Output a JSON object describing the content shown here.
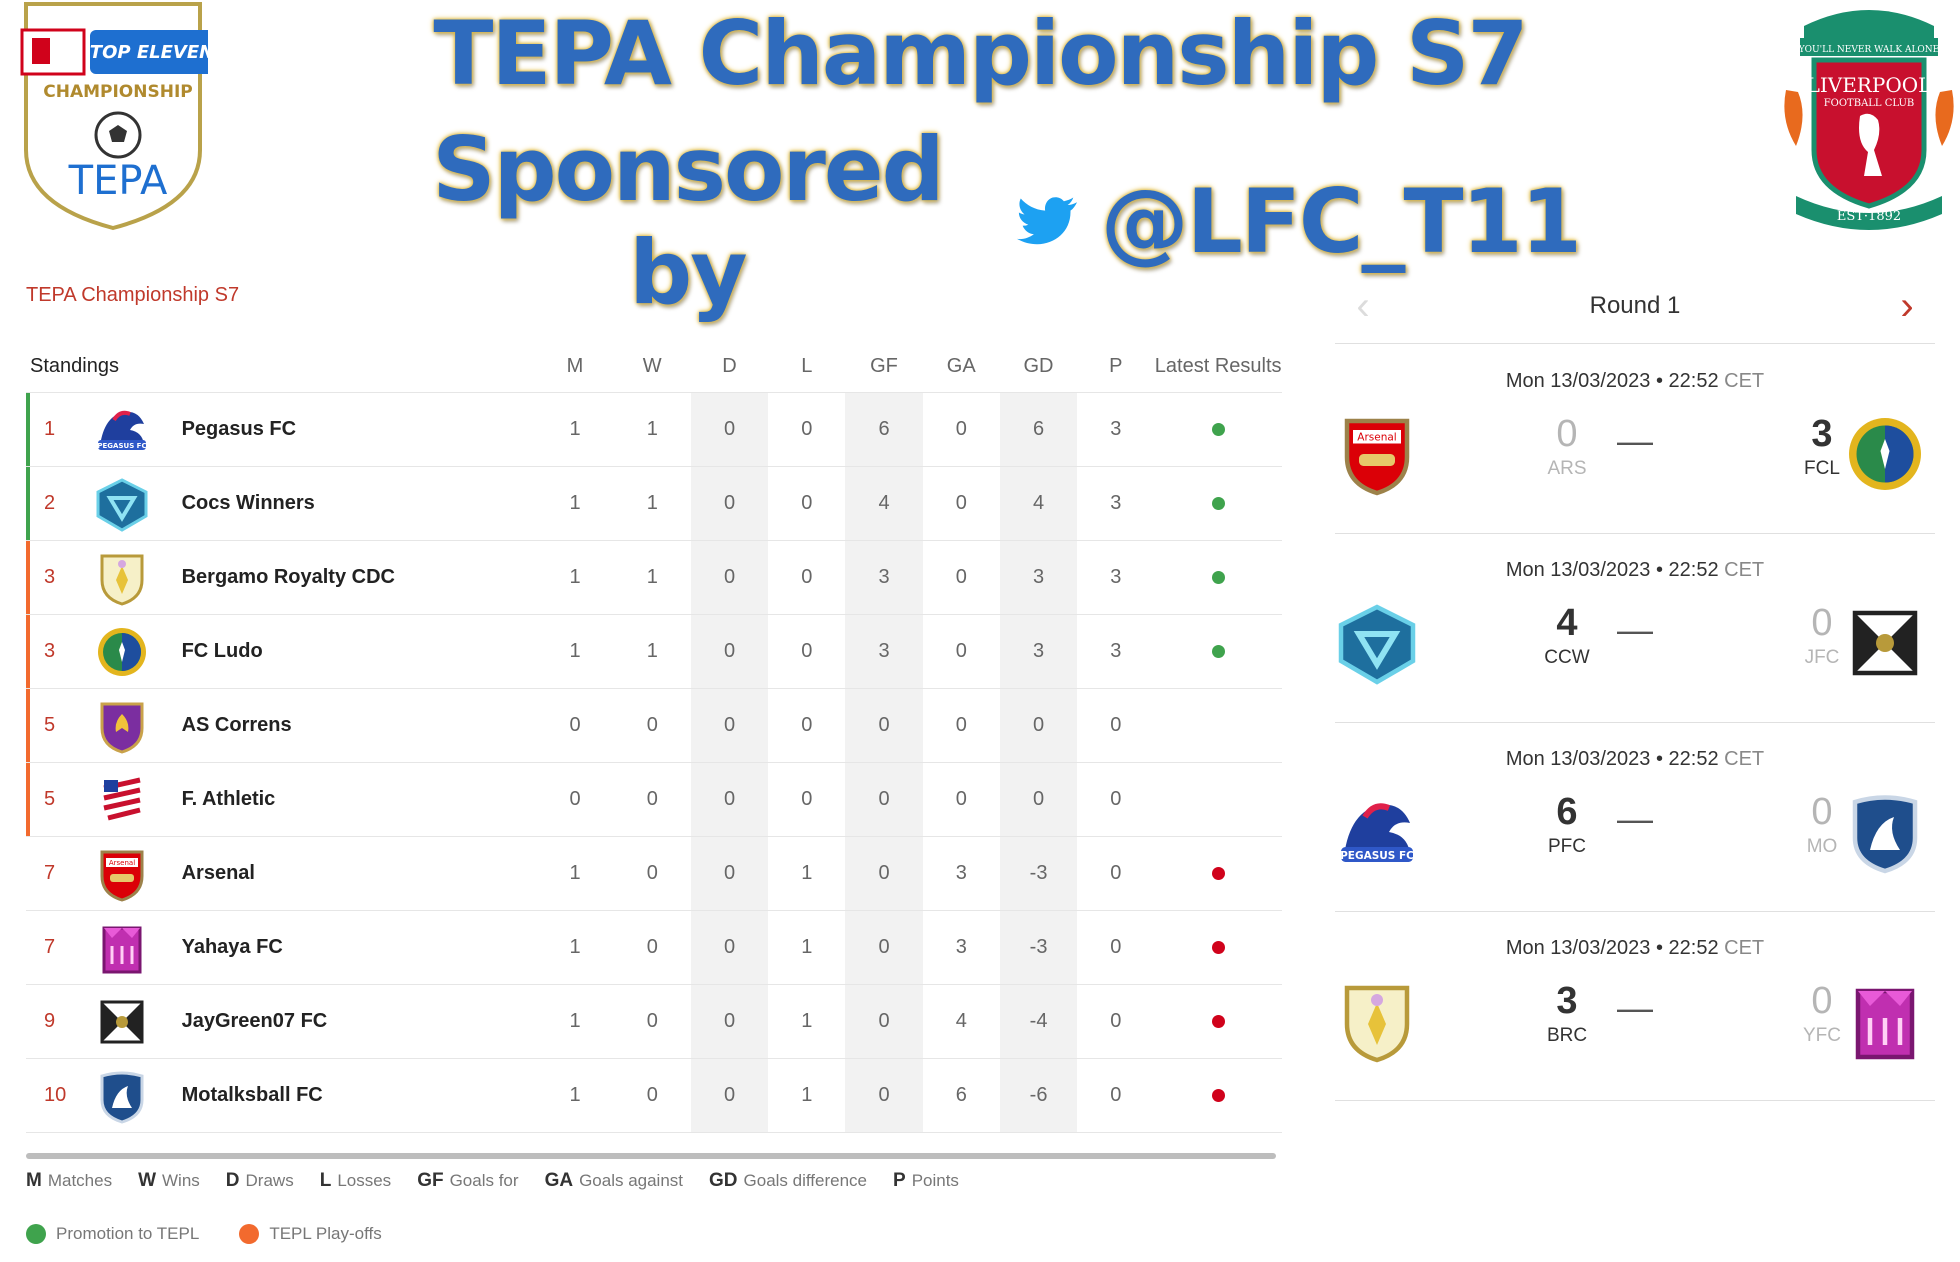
{
  "banner": {
    "title_line1": "TEPA Championship S7",
    "title_line2": "Sponsored by",
    "handle": "@LFC_T11",
    "left_logo": {
      "top_tag": "TOP ELEVEN",
      "label": "CHAMPIONSHIP",
      "name": "TEPA"
    },
    "right_logo": {
      "motto": "YOU'LL NEVER WALK ALONE",
      "name": "LIVERPOOL",
      "sub": "FOOTBALL CLUB",
      "est": "EST·1892"
    }
  },
  "competition_title": "TEPA Championship S7",
  "standings": {
    "header": {
      "label": "Standings",
      "m": "M",
      "w": "W",
      "d": "D",
      "l": "L",
      "gf": "GF",
      "ga": "GA",
      "gd": "GD",
      "p": "P",
      "latest": "Latest Results"
    },
    "rows": [
      {
        "pos": "1",
        "team": "Pegasus FC",
        "m": "1",
        "w": "1",
        "d": "0",
        "l": "0",
        "gf": "6",
        "ga": "0",
        "gd": "6",
        "p": "3",
        "zone": "promotion",
        "result": "win"
      },
      {
        "pos": "2",
        "team": "Cocs Winners",
        "m": "1",
        "w": "1",
        "d": "0",
        "l": "0",
        "gf": "4",
        "ga": "0",
        "gd": "4",
        "p": "3",
        "zone": "promotion",
        "result": "win"
      },
      {
        "pos": "3",
        "team": "Bergamo Royalty CDC",
        "m": "1",
        "w": "1",
        "d": "0",
        "l": "0",
        "gf": "3",
        "ga": "0",
        "gd": "3",
        "p": "3",
        "zone": "playoff",
        "result": "win"
      },
      {
        "pos": "3",
        "team": "FC Ludo",
        "m": "1",
        "w": "1",
        "d": "0",
        "l": "0",
        "gf": "3",
        "ga": "0",
        "gd": "3",
        "p": "3",
        "zone": "playoff",
        "result": "win"
      },
      {
        "pos": "5",
        "team": "AS Correns",
        "m": "0",
        "w": "0",
        "d": "0",
        "l": "0",
        "gf": "0",
        "ga": "0",
        "gd": "0",
        "p": "0",
        "zone": "playoff",
        "result": ""
      },
      {
        "pos": "5",
        "team": "F. Athletic",
        "m": "0",
        "w": "0",
        "d": "0",
        "l": "0",
        "gf": "0",
        "ga": "0",
        "gd": "0",
        "p": "0",
        "zone": "playoff",
        "result": ""
      },
      {
        "pos": "7",
        "team": "Arsenal",
        "m": "1",
        "w": "0",
        "d": "0",
        "l": "1",
        "gf": "0",
        "ga": "3",
        "gd": "-3",
        "p": "0",
        "zone": "",
        "result": "loss"
      },
      {
        "pos": "7",
        "team": "Yahaya FC",
        "m": "1",
        "w": "0",
        "d": "0",
        "l": "1",
        "gf": "0",
        "ga": "3",
        "gd": "-3",
        "p": "0",
        "zone": "",
        "result": "loss"
      },
      {
        "pos": "9",
        "team": "JayGreen07 FC",
        "m": "1",
        "w": "0",
        "d": "0",
        "l": "1",
        "gf": "0",
        "ga": "4",
        "gd": "-4",
        "p": "0",
        "zone": "",
        "result": "loss"
      },
      {
        "pos": "10",
        "team": "Motalksball FC",
        "m": "1",
        "w": "0",
        "d": "0",
        "l": "1",
        "gf": "0",
        "ga": "6",
        "gd": "-6",
        "p": "0",
        "zone": "",
        "result": "loss"
      }
    ]
  },
  "abbreviations": [
    {
      "abbr": "M",
      "text": "Matches"
    },
    {
      "abbr": "W",
      "text": "Wins"
    },
    {
      "abbr": "D",
      "text": "Draws"
    },
    {
      "abbr": "L",
      "text": "Losses"
    },
    {
      "abbr": "GF",
      "text": "Goals for"
    },
    {
      "abbr": "GA",
      "text": "Goals against"
    },
    {
      "abbr": "GD",
      "text": "Goals difference"
    },
    {
      "abbr": "P",
      "text": "Points"
    }
  ],
  "zones": {
    "promotion": {
      "label": "Promotion to TEPL",
      "color": "#3fa34d"
    },
    "playoff": {
      "label": "TEPL Play-offs",
      "color": "#f26a2e"
    }
  },
  "colors": {
    "accent": "#c0392b",
    "win": "#3fa34d",
    "loss": "#d0021b"
  },
  "round": {
    "label": "Round 1",
    "prev_icon": "chevron-left-icon",
    "next_icon": "chevron-right-icon"
  },
  "matches": [
    {
      "date": "Mon 13/03/2023 • 22:52",
      "tz": "CET",
      "home_score": "0",
      "home_abbr": "ARS",
      "home_logo": "arsenal",
      "away_score": "3",
      "away_abbr": "FCL",
      "away_logo": "fcludo",
      "winner": "away"
    },
    {
      "date": "Mon 13/03/2023 • 22:52",
      "tz": "CET",
      "home_score": "4",
      "home_abbr": "CCW",
      "home_logo": "cocs",
      "away_score": "0",
      "away_abbr": "JFC",
      "away_logo": "jaygreen",
      "winner": "home"
    },
    {
      "date": "Mon 13/03/2023 • 22:52",
      "tz": "CET",
      "home_score": "6",
      "home_abbr": "PFC",
      "home_logo": "pegasus",
      "away_score": "0",
      "away_abbr": "MO",
      "away_logo": "motalks",
      "winner": "home"
    },
    {
      "date": "Mon 13/03/2023 • 22:52",
      "tz": "CET",
      "home_score": "3",
      "home_abbr": "BRC",
      "home_logo": "bergamo",
      "away_score": "0",
      "away_abbr": "YFC",
      "away_logo": "yahaya",
      "winner": "home"
    }
  ],
  "match_separator": "—"
}
